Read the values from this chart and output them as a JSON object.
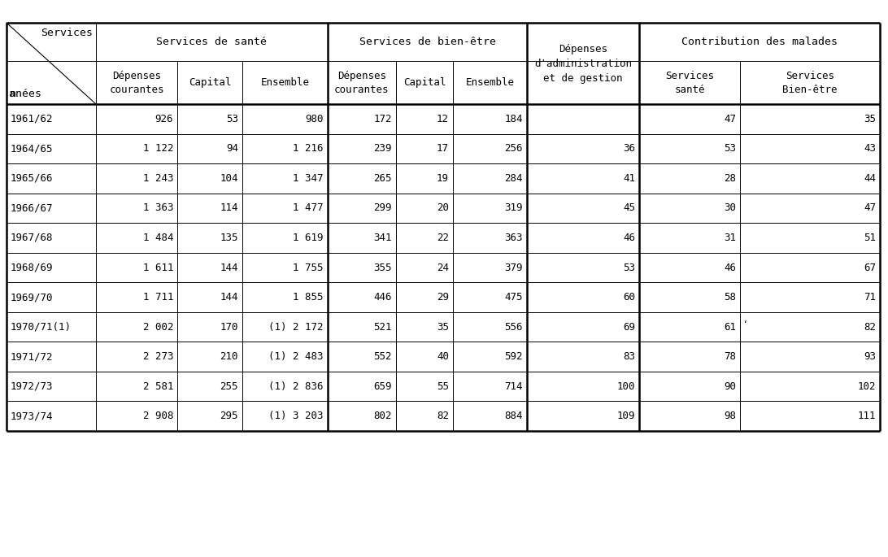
{
  "rows": [
    [
      "1961/62",
      "926",
      "53",
      "980",
      "172",
      "12",
      "184",
      "",
      "47",
      "35"
    ],
    [
      "1964/65",
      "1 122",
      "94",
      "1 216",
      "239",
      "17",
      "256",
      "36",
      "53",
      "43"
    ],
    [
      "1965/66",
      "1 243",
      "104",
      "1 347",
      "265",
      "19",
      "284",
      "41",
      "28",
      "44"
    ],
    [
      "1966/67",
      "1 363",
      "114",
      "1 477",
      "299",
      "20",
      "319",
      "45",
      "30",
      "47"
    ],
    [
      "1967/68",
      "1 484",
      "135",
      "1 619",
      "341",
      "22",
      "363",
      "46",
      "31",
      "51"
    ],
    [
      "1968/69",
      "1 611",
      "144",
      "1 755",
      "355",
      "24",
      "379",
      "53",
      "46",
      "67"
    ],
    [
      "1969/70",
      "1 711",
      "144",
      "1 855",
      "446",
      "29",
      "475",
      "60",
      "58",
      "71"
    ],
    [
      "1970/71(1)",
      "2 002",
      "170",
      "(1) 2 172",
      "521",
      "35",
      "556",
      "69",
      "61",
      "82"
    ],
    [
      "1971/72",
      "2 273",
      "210",
      "(1) 2 483",
      "552",
      "40",
      "592",
      "83",
      "78",
      "93"
    ],
    [
      "1972/73",
      "2 581",
      "255",
      "(1) 2 836",
      "659",
      "55",
      "714",
      "100",
      "90",
      "102"
    ],
    [
      "1973/74",
      "2 908",
      "295",
      "(1) 3 203",
      "802",
      "82",
      "884",
      "109",
      "98",
      "111"
    ]
  ],
  "bg_color": "#ffffff",
  "font_size": 9.5,
  "note_mark_row": 7,
  "note_mark_col": 8
}
